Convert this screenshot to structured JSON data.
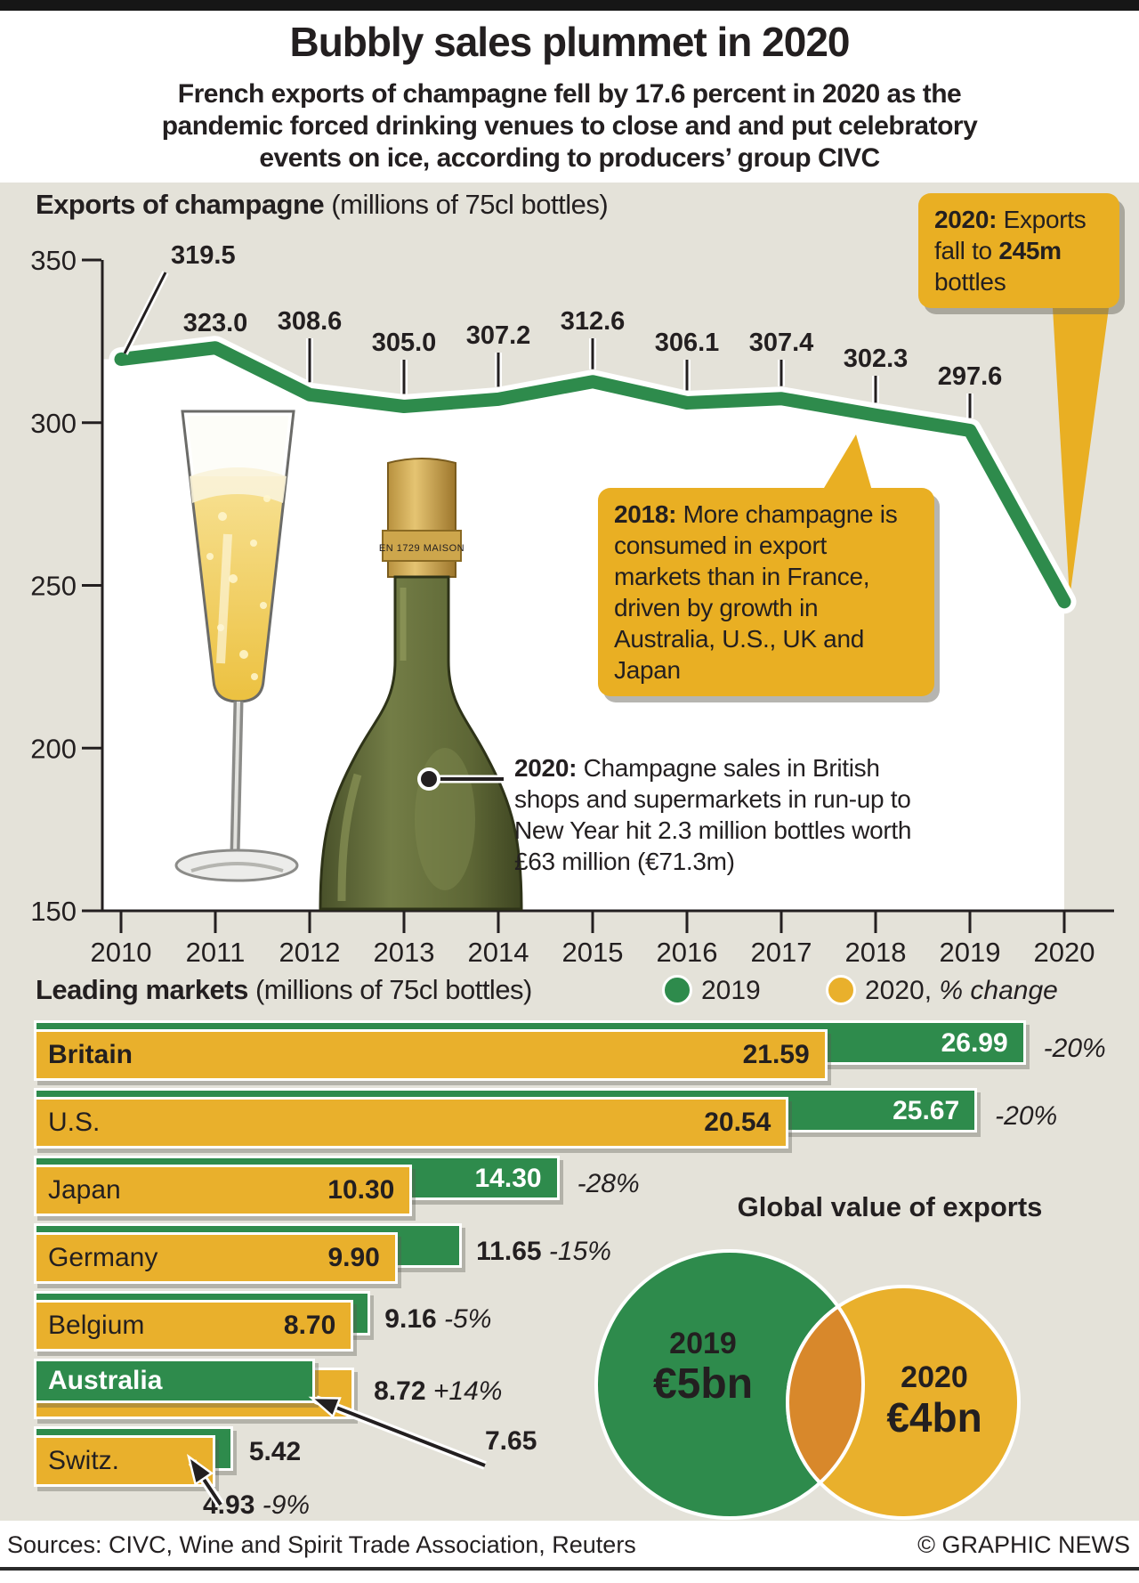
{
  "header": {
    "title": "Bubbly sales plummet in 2020",
    "subtitle_lines": [
      "French exports of champagne fell by 17.6 percent in 2020 as the",
      "pandemic forced drinking venues to close and and put celebratory",
      "events on ice, according to producers’ group CIVC"
    ]
  },
  "line_chart": {
    "title_bold": "Exports of champagne",
    "title_rest": " (millions of 75cl bottles)",
    "years": [
      "2010",
      "2011",
      "2012",
      "2013",
      "2014",
      "2015",
      "2016",
      "2017",
      "2018",
      "2019",
      "2020"
    ],
    "values": [
      319.5,
      323.0,
      308.6,
      305.0,
      307.2,
      312.6,
      306.1,
      307.4,
      302.3,
      297.6,
      245.0
    ],
    "point_labels": [
      "319.5",
      "323.0",
      "308.6",
      "305.0",
      "307.2",
      "312.6",
      "306.1",
      "307.4",
      "302.3",
      "297.6"
    ],
    "y_ticks": [
      "350",
      "300",
      "250",
      "200",
      "150"
    ]
  },
  "callouts": {
    "box2020_parts": [
      [
        "b",
        "2020:"
      ],
      [
        "t",
        " Exports fall to "
      ],
      [
        "b",
        "245m"
      ],
      [
        "t",
        " bottles"
      ]
    ],
    "box2018_parts": [
      [
        "b",
        "2018:"
      ],
      [
        "t",
        " More champagne is consumed in export markets than in France, driven by growth in Australia, U.S., UK and Japan"
      ]
    ],
    "note2020_parts": [
      [
        "b",
        "2020:"
      ],
      [
        "t",
        " Champagne sales in British shops and supermarkets in run-up to New Year hit 2.3 million bottles worth £63 million (€71.3m)"
      ]
    ]
  },
  "bottle_label": "EN 1729 MAISON",
  "leading_markets": {
    "title_bold": "Leading markets",
    "title_rest": " (millions of 75cl bottles)",
    "legend": [
      {
        "label": "2019"
      },
      {
        "label_parts": [
          [
            "t",
            "2020, "
          ],
          [
            "i",
            "% change"
          ]
        ]
      }
    ],
    "rows": [
      {
        "country": "Britain",
        "v2019": 26.99,
        "v2020": 21.59,
        "v2019_label": "26.99",
        "v2020_label": "21.59",
        "change": "-20%"
      },
      {
        "country": "U.S.",
        "v2019": 25.67,
        "v2020": 20.54,
        "v2019_label": "25.67",
        "v2020_label": "20.54",
        "change": "-20%"
      },
      {
        "country": "Japan",
        "v2019": 14.3,
        "v2020": 10.3,
        "v2019_label": "14.30",
        "v2020_label": "10.30",
        "change": "-28%"
      },
      {
        "country": "Germany",
        "v2019": 11.65,
        "v2020": 9.9,
        "v2019_label": "11.65",
        "v2020_label": "9.90",
        "change": "-15%"
      },
      {
        "country": "Belgium",
        "v2019": 9.16,
        "v2020": 8.7,
        "v2019_label": "9.16",
        "v2020_label": "8.70",
        "change": "-5%"
      },
      {
        "country": "Australia",
        "v2019": 7.65,
        "v2020": 8.72,
        "v2019_label": "7.65",
        "v2020_label": "8.72",
        "change": "+14%"
      },
      {
        "country": "Switz.",
        "v2019": 5.42,
        "v2020": 4.93,
        "v2019_label": "5.42",
        "v2020_label": "4.93",
        "change": "-9%"
      }
    ]
  },
  "global_value": {
    "title": "Global value of exports",
    "circles": [
      {
        "year": "2019",
        "value": "€5bn"
      },
      {
        "year": "2020",
        "value": "€4bn"
      }
    ]
  },
  "footer": {
    "sources": "Sources: CIVC, Wine and Spirit Trade Association, Reuters",
    "credit": "© GRAPHIC NEWS"
  },
  "colors": {
    "green": "#2e8b4c",
    "yellow": "#e9b02c",
    "overlap": "#d8882b",
    "background": "#e4e2d9",
    "dark": "#231f20"
  },
  "chart_data": [
    {
      "type": "line",
      "title": "Exports of champagne (millions of 75cl bottles)",
      "x": [
        2010,
        2011,
        2012,
        2013,
        2014,
        2015,
        2016,
        2017,
        2018,
        2019,
        2020
      ],
      "values": [
        319.5,
        323.0,
        308.6,
        305.0,
        307.2,
        312.6,
        306.1,
        307.4,
        302.3,
        297.6,
        245.0
      ],
      "ylim": [
        150,
        350
      ],
      "y_ticks": [
        150,
        200,
        250,
        300,
        350
      ],
      "grid": false,
      "annotations": [
        "2020: Exports fall to 245m bottles",
        "2018: More champagne is consumed in export markets than in France, driven by growth in Australia, U.S., UK and Japan",
        "2020: Champagne sales in British shops and supermarkets in run-up to New Year hit 2.3 million bottles worth £63 million (€71.3m)"
      ]
    },
    {
      "type": "bar",
      "title": "Leading markets (millions of 75cl bottles)",
      "categories": [
        "Britain",
        "U.S.",
        "Japan",
        "Germany",
        "Belgium",
        "Australia",
        "Switz."
      ],
      "series": [
        {
          "name": "2019",
          "values": [
            26.99,
            25.67,
            14.3,
            11.65,
            9.16,
            7.65,
            5.42
          ]
        },
        {
          "name": "2020",
          "values": [
            21.59,
            20.54,
            10.3,
            9.9,
            8.7,
            8.72,
            4.93
          ]
        }
      ],
      "pct_change": [
        "-20%",
        "-20%",
        "-28%",
        "-15%",
        "-5%",
        "+14%",
        "-9%"
      ],
      "legend_position": "top"
    },
    {
      "type": "pie",
      "variant": "proportional-overlapping-circles",
      "title": "Global value of exports",
      "labels": [
        "2019",
        "2020"
      ],
      "values": [
        5,
        4
      ],
      "values_display": [
        "€5bn",
        "€4bn"
      ],
      "unit": "€bn"
    }
  ]
}
